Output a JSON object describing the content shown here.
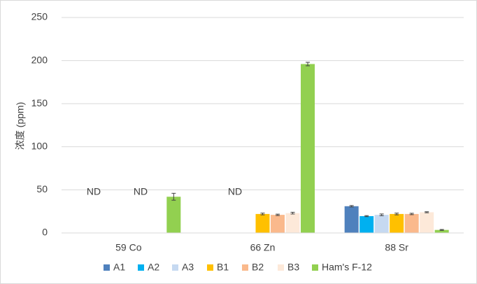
{
  "chart_data": {
    "type": "bar",
    "y_label": "浓度 (ppm)",
    "categories": [
      "59 Co",
      "66 Zn",
      "88 Sr"
    ],
    "series": [
      {
        "name": "A1",
        "color": "#4f81bd",
        "values": [
          null,
          null,
          31
        ],
        "errors": [
          null,
          null,
          0.8
        ]
      },
      {
        "name": "A2",
        "color": "#00b0f0",
        "values": [
          null,
          null,
          19.5
        ],
        "errors": [
          null,
          null,
          0.6
        ]
      },
      {
        "name": "A3",
        "color": "#c6d9f1",
        "values": [
          null,
          null,
          21
        ],
        "errors": [
          null,
          null,
          1
        ]
      },
      {
        "name": "B1",
        "color": "#ffc000",
        "values": [
          null,
          22,
          22
        ],
        "errors": [
          null,
          1,
          1
        ]
      },
      {
        "name": "B2",
        "color": "#fab98c",
        "values": [
          null,
          21,
          22
        ],
        "errors": [
          null,
          0.8,
          0.8
        ]
      },
      {
        "name": "B3",
        "color": "#fde9d9",
        "values": [
          null,
          23,
          24
        ],
        "errors": [
          null,
          1,
          0.6
        ]
      },
      {
        "name": "Ham's F-12",
        "color": "#92d050",
        "values": [
          42,
          196,
          3.5
        ],
        "errors": [
          4,
          2,
          0.5
        ]
      }
    ],
    "annotations": [
      "ND",
      "ND",
      "ND"
    ],
    "ylim": [
      0,
      250
    ],
    "yticks": [
      0,
      50,
      100,
      150,
      200,
      250
    ],
    "grid": true
  }
}
